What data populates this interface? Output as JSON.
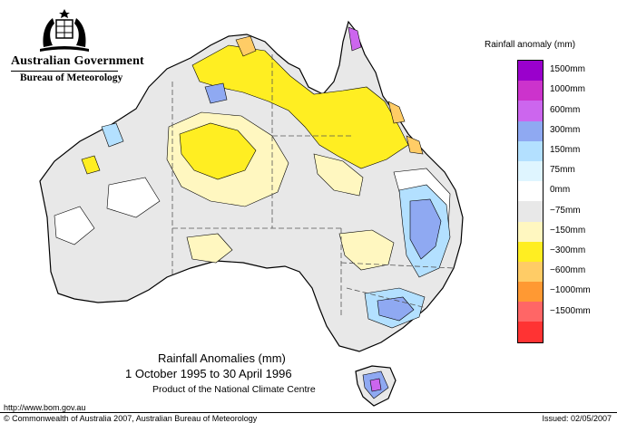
{
  "header": {
    "government": "Australian Government",
    "bureau": "Bureau of Meteorology"
  },
  "map": {
    "region": "Australia",
    "caption_title": "Rainfall Anomalies (mm)",
    "caption_period": "1 October 1995 to 30 April 1996",
    "caption_product": "Product of the National Climate Centre"
  },
  "legend": {
    "title": "Rainfall anomaly (mm)",
    "items": [
      {
        "label": "1500mm",
        "color": "#9a00cc"
      },
      {
        "label": "1000mm",
        "color": "#cc33cc"
      },
      {
        "label": "600mm",
        "color": "#cc66ee"
      },
      {
        "label": "300mm",
        "color": "#8fa9f2"
      },
      {
        "label": "150mm",
        "color": "#b3e0ff"
      },
      {
        "label": "75mm",
        "color": "#dff5ff"
      },
      {
        "label": "0mm",
        "color": "#ffffff"
      },
      {
        "label": "−75mm",
        "color": "#e8e8e8"
      },
      {
        "label": "−150mm",
        "color": "#fff7c0"
      },
      {
        "label": "−300mm",
        "color": "#ffee22"
      },
      {
        "label": "−600mm",
        "color": "#ffcc66"
      },
      {
        "label": "−1000mm",
        "color": "#ff9933"
      },
      {
        "label": "−1500mm",
        "color": "#ff6666"
      },
      {
        "label": "",
        "color": "#ff3333"
      }
    ]
  },
  "footer": {
    "url": "http://www.bom.gov.au",
    "copyright": "© Commonwealth of Australia 2007, Australian Bureau of Meteorology",
    "issued": "Issued: 02/05/2007"
  }
}
